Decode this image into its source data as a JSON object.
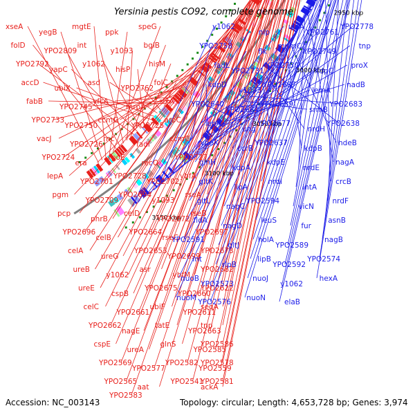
{
  "title": "Yersinia pestis CO92, complete genome",
  "footer": {
    "accession": "Accession: NC_003143",
    "summary": "Topology: circular; Length: 4,653,728 bp; Genes: 3,974"
  },
  "colors": {
    "forward_gene": "#1c1ce8",
    "reverse_gene": "#e8201c",
    "backbone": "#808080",
    "tick": "#1a8c1a"
  },
  "kbp_ticks": [
    "3150 kbp",
    "3100 kbp",
    "3050 kbp",
    "3000 kbp",
    "2950 kbp",
    "2900 kbp",
    "2850 kbp",
    "2800 kbp"
  ],
  "reverse_genes": [
    "xseA",
    "yegB",
    "mgtE",
    "ppk",
    "speG",
    "folD",
    "YPO2809",
    "int",
    "y1093",
    "bglB",
    "YPO2792",
    "yapC",
    "y1062",
    "hisP",
    "hisM",
    "accD",
    "ubiX",
    "asd",
    "YPO2762",
    "folC",
    "fabB",
    "YPO2745",
    "yfcA",
    "mrpA",
    "sixA",
    "YPO2733",
    "YPO2750",
    "ccmG",
    "YPO2725",
    "aroC",
    "vacJ",
    "YPO2726",
    "rnc",
    "fadI",
    "ccmC",
    "YPO2724",
    "era",
    "rpoE",
    "recO",
    "YPO2727",
    "lepA",
    "YPO2701",
    "YPO2728",
    "YPO2702",
    "ybfA",
    "pgm",
    "YPO2709",
    "YPO2694",
    "y1093",
    "rseA",
    "pcp",
    "phrB",
    "celD",
    "YPO2672",
    "rseB",
    "YPO2696",
    "celB",
    "YPO2664",
    "rseC",
    "YPO2697",
    "celA",
    "ureG",
    "YPO2653",
    "YPO2699",
    "YPO2673",
    "ureB",
    "y1062",
    "asr",
    "ybfM",
    "YPO2682",
    "ureE",
    "cspB",
    "YPO2675",
    "YPO2660",
    "YPO2622",
    "celC",
    "YPO2661",
    "ubiF",
    "YPO2611",
    "seqA",
    "YPO2662",
    "nagE",
    "tatE",
    "YPO2663",
    "tnp",
    "cspE",
    "ureA",
    "glnS",
    "YPO2585",
    "YPO2586",
    "YPO2569",
    "YPO2577",
    "YPO2582",
    "YPO2559",
    "YPO2578",
    "YPO2565",
    "aat",
    "YPO2541",
    "ackA",
    "YPO2581",
    "YPO2583"
  ],
  "forward_genes": [
    "y1062",
    "nlp",
    "ulaA",
    "YPO2761",
    "YPO2778",
    "YPO2758",
    "flk",
    "mnmC",
    "YPO2749",
    "tnp",
    "fadL",
    "YPO2731",
    "YPO2730",
    "kdpC",
    "proX",
    "kdpD",
    "y1093",
    "YPO2687",
    "lemA",
    "nadB",
    "YPO2640",
    "YPO2684",
    "YPO2639",
    "srmB",
    "YPO2683",
    "lepA",
    "ung",
    "YPO2677",
    "nrdH",
    "YPO2638",
    "ybeX",
    "ccrB",
    "YPO2637",
    "kdpB",
    "hdeB",
    "glnH",
    "kdpA",
    "kdpE",
    "nrdE",
    "nagA",
    "gltK",
    "lipA",
    "nrdI",
    "intA",
    "crcB",
    "gltL",
    "nagC",
    "YPO2594",
    "vicN",
    "nrdF",
    "fldA",
    "nagD",
    "leuS",
    "fur",
    "asnB",
    "YPO2591",
    "gltJ",
    "holA",
    "YPO2589",
    "nagB",
    "int",
    "rlpB",
    "lipB",
    "YPO2592",
    "YPO2574",
    "nuoB",
    "YPO2573",
    "nuoJ",
    "y1062",
    "hexA",
    "nuoM",
    "YPO2576",
    "nuoN",
    "elaB"
  ]
}
